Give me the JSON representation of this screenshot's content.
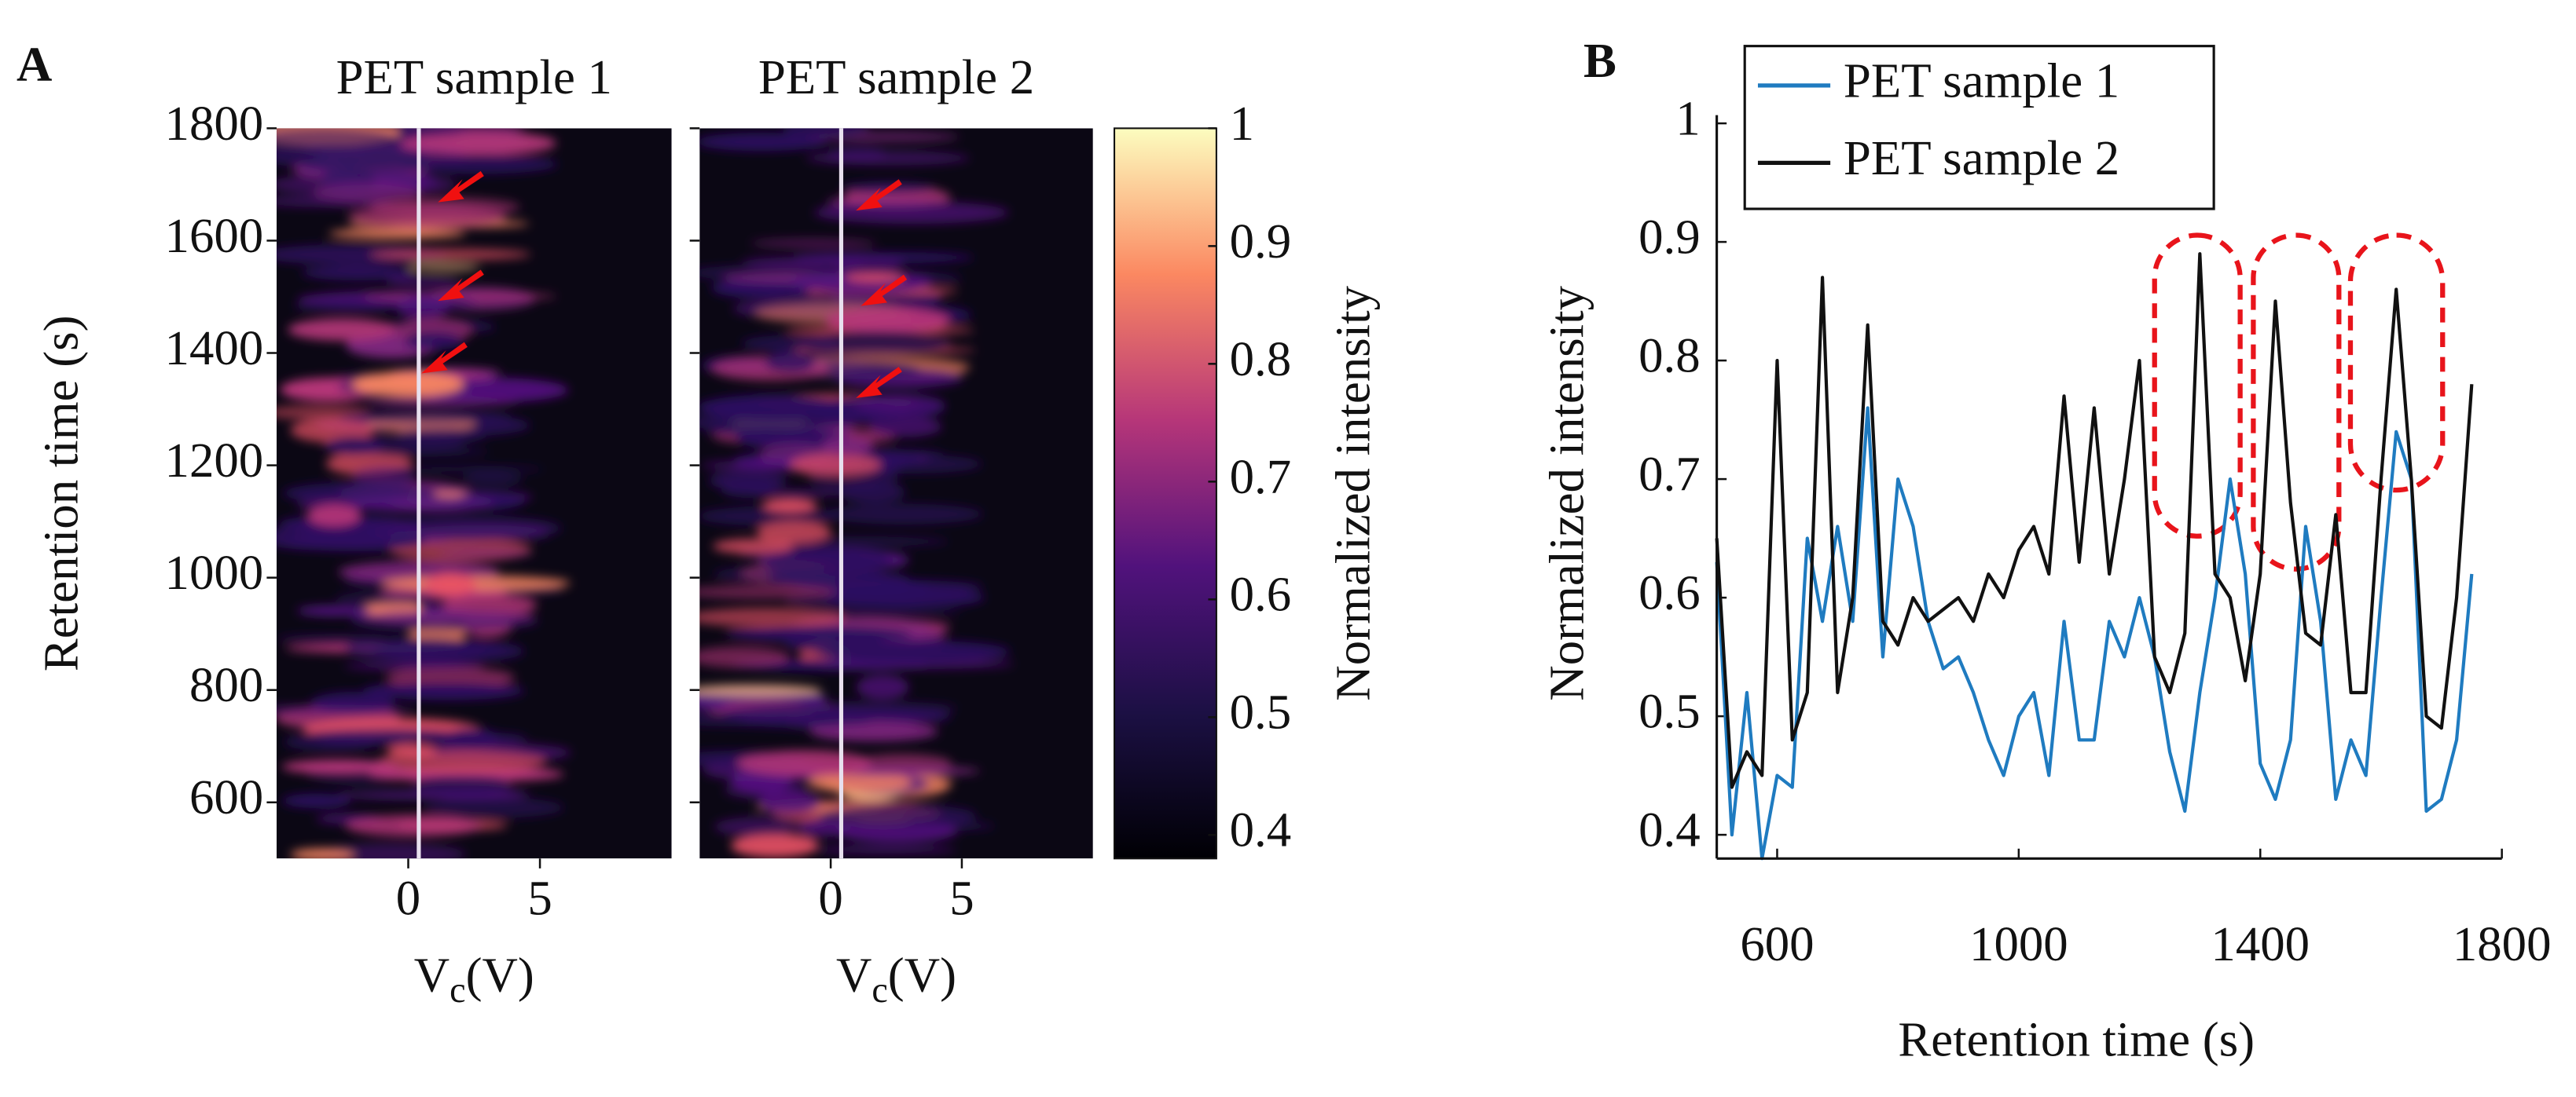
{
  "chart_data": [
    {
      "type": "heatmap",
      "panel_label": "A",
      "title": "PET sample 1",
      "x_label": {
        "main": "V",
        "sub": "c",
        "unit": "(V)"
      },
      "y_label": "Retention time (s)",
      "xlim": [
        -5,
        10
      ],
      "xticks": [
        0,
        5
      ],
      "ylim": [
        500,
        1800
      ],
      "yticks": [
        600,
        800,
        1000,
        1200,
        1400,
        1600,
        1800
      ],
      "ytick_labels": true,
      "marker_line": 0.4
    },
    {
      "type": "heatmap",
      "title": "PET sample 2",
      "x_label": {
        "main": "V",
        "sub": "c",
        "unit": "(V)"
      },
      "xlim": [
        -5,
        10
      ],
      "xticks": [
        0,
        5
      ],
      "ylim": [
        500,
        1800
      ],
      "yticks": [
        600,
        800,
        1000,
        1200,
        1400,
        1600,
        1800
      ],
      "ytick_labels": false,
      "marker_line": 0.4,
      "colorbar": {
        "label": "Normalized intensity",
        "lim": [
          0.38,
          1
        ],
        "ticks": [
          0.4,
          0.5,
          0.6,
          0.7,
          0.8,
          0.9,
          1
        ]
      }
    },
    {
      "type": "line",
      "panel_label": "B",
      "x_label": "Retention time (s)",
      "y_label": "Normalized intensity",
      "xlim": [
        500,
        1800
      ],
      "xticks": [
        600,
        1000,
        1400,
        1800
      ],
      "ylim": [
        0.38,
        1
      ],
      "yticks": [
        0.4,
        0.5,
        0.6,
        0.7,
        0.8,
        0.9,
        1
      ],
      "legend": "top-left",
      "x": [
        500,
        525,
        550,
        575,
        600,
        625,
        650,
        675,
        700,
        725,
        750,
        775,
        800,
        825,
        850,
        875,
        900,
        925,
        950,
        975,
        1000,
        1025,
        1050,
        1075,
        1100,
        1125,
        1150,
        1175,
        1200,
        1225,
        1250,
        1275,
        1300,
        1325,
        1350,
        1375,
        1400,
        1425,
        1450,
        1475,
        1500,
        1525,
        1550,
        1575,
        1600,
        1625,
        1650,
        1675,
        1700,
        1725,
        1750
      ],
      "series": [
        {
          "name": "PET sample 1",
          "color": "#1f7bc0",
          "values": [
            0.63,
            0.4,
            0.52,
            0.38,
            0.45,
            0.44,
            0.65,
            0.58,
            0.66,
            0.58,
            0.76,
            0.55,
            0.7,
            0.66,
            0.58,
            0.54,
            0.55,
            0.52,
            0.48,
            0.45,
            0.5,
            0.52,
            0.45,
            0.58,
            0.48,
            0.48,
            0.58,
            0.55,
            0.6,
            0.55,
            0.47,
            0.42,
            0.52,
            0.6,
            0.7,
            0.62,
            0.46,
            0.43,
            0.48,
            0.66,
            0.58,
            0.43,
            0.48,
            0.45,
            0.6,
            0.74,
            0.7,
            0.42,
            0.43,
            0.48,
            0.62
          ]
        },
        {
          "name": "PET sample 2",
          "color": "#111111",
          "values": [
            0.65,
            0.44,
            0.47,
            0.45,
            0.8,
            0.48,
            0.52,
            0.87,
            0.52,
            0.6,
            0.83,
            0.58,
            0.56,
            0.6,
            0.58,
            0.59,
            0.6,
            0.58,
            0.62,
            0.6,
            0.64,
            0.66,
            0.62,
            0.77,
            0.63,
            0.76,
            0.62,
            0.7,
            0.8,
            0.55,
            0.52,
            0.57,
            0.89,
            0.62,
            0.6,
            0.53,
            0.62,
            0.85,
            0.68,
            0.57,
            0.56,
            0.67,
            0.52,
            0.52,
            0.7,
            0.86,
            0.7,
            0.5,
            0.49,
            0.6,
            0.78
          ]
        }
      ]
    }
  ]
}
